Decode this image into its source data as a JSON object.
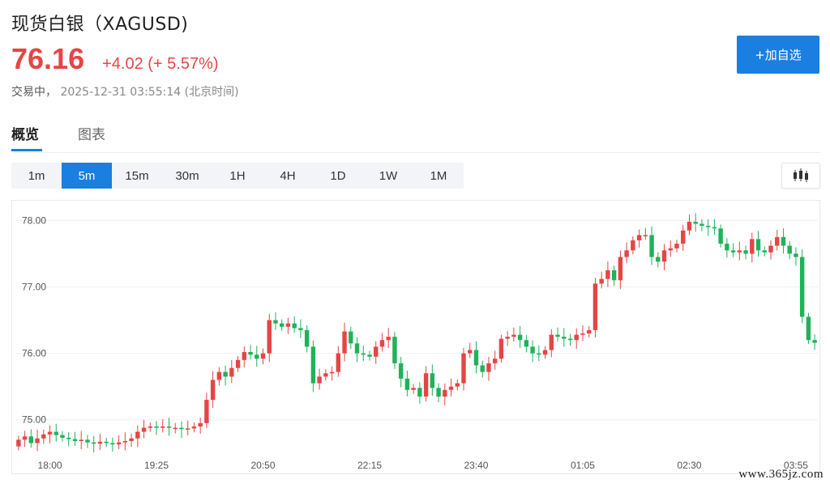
{
  "header": {
    "title": "现货白银（XAGUSD)",
    "price": "76.16",
    "change": "+4.02 (+ 5.57%)",
    "status_label": "交易中，",
    "timestamp": "2025-12-31 03:55:14",
    "timezone": "(北京时间)",
    "add_button": "+加自选"
  },
  "tabs": [
    {
      "label": "概览",
      "active": true
    },
    {
      "label": "图表",
      "active": false
    }
  ],
  "periods": [
    {
      "label": "1m",
      "active": false
    },
    {
      "label": "5m",
      "active": true
    },
    {
      "label": "15m",
      "active": false
    },
    {
      "label": "30m",
      "active": false
    },
    {
      "label": "1H",
      "active": false
    },
    {
      "label": "4H",
      "active": false
    },
    {
      "label": "1D",
      "active": false
    },
    {
      "label": "1W",
      "active": false
    },
    {
      "label": "1M",
      "active": false
    }
  ],
  "chart_type_icon": "candlestick-icon",
  "watermark": "www.365jz.com",
  "colors": {
    "up": "#e64545",
    "down": "#1fb25a",
    "accent": "#1a7fe0",
    "grid": "#eef0f3"
  },
  "chart_data": {
    "type": "candlestick",
    "ylim": [
      74.4,
      78.2
    ],
    "yticks": [
      "75.00",
      "76.00",
      "77.00",
      "78.00"
    ],
    "xtick_labels": [
      {
        "label": "18:00",
        "index": 5
      },
      {
        "label": "19:25",
        "index": 22
      },
      {
        "label": "20:50",
        "index": 39
      },
      {
        "label": "22:15",
        "index": 56
      },
      {
        "label": "23:40",
        "index": 73
      },
      {
        "label": "01:05",
        "index": 90
      },
      {
        "label": "02:30",
        "index": 107
      },
      {
        "label": "03:55",
        "index": 124
      }
    ],
    "close": [
      74.7,
      74.75,
      74.65,
      74.72,
      74.78,
      74.82,
      74.77,
      74.73,
      74.71,
      74.68,
      74.7,
      74.66,
      74.64,
      74.67,
      74.65,
      74.63,
      74.66,
      74.68,
      74.72,
      74.82,
      74.88,
      74.9,
      74.88,
      74.9,
      74.88,
      74.88,
      74.86,
      74.87,
      74.9,
      74.95,
      75.3,
      75.6,
      75.72,
      75.65,
      75.78,
      75.9,
      76.02,
      75.98,
      75.92,
      76.0,
      76.5,
      76.45,
      76.4,
      76.45,
      76.38,
      76.35,
      76.1,
      75.55,
      75.65,
      75.7,
      75.72,
      76.0,
      76.33,
      76.15,
      76.0,
      75.98,
      75.95,
      76.1,
      76.2,
      76.25,
      75.85,
      75.62,
      75.45,
      75.48,
      75.35,
      75.7,
      75.48,
      75.35,
      75.45,
      75.5,
      75.55,
      76.0,
      76.05,
      75.82,
      75.72,
      75.85,
      75.92,
      76.22,
      76.25,
      76.28,
      76.2,
      76.1,
      76.0,
      75.98,
      76.05,
      76.28,
      76.25,
      76.22,
      76.2,
      76.28,
      76.3,
      76.35,
      77.05,
      77.12,
      77.25,
      77.1,
      77.45,
      77.55,
      77.7,
      77.78,
      77.78,
      77.45,
      77.38,
      77.55,
      77.58,
      77.65,
      77.85,
      77.98,
      77.95,
      77.92,
      77.9,
      77.88,
      77.65,
      77.55,
      77.52,
      77.55,
      77.5,
      77.72,
      77.55,
      77.52,
      77.62,
      77.75,
      77.62,
      77.5,
      77.45,
      76.55,
      76.2,
      76.16
    ],
    "open": [
      74.6,
      74.7,
      74.75,
      74.65,
      74.72,
      74.78,
      74.82,
      74.77,
      74.73,
      74.71,
      74.68,
      74.7,
      74.66,
      74.64,
      74.67,
      74.65,
      74.63,
      74.66,
      74.68,
      74.72,
      74.82,
      74.88,
      74.9,
      74.88,
      74.9,
      74.88,
      74.88,
      74.86,
      74.87,
      74.9,
      74.95,
      75.3,
      75.6,
      75.72,
      75.65,
      75.78,
      75.9,
      76.02,
      75.98,
      75.92,
      76.0,
      76.5,
      76.45,
      76.4,
      76.45,
      76.38,
      76.35,
      76.1,
      75.55,
      75.65,
      75.7,
      75.72,
      76.0,
      76.33,
      76.15,
      76.0,
      75.98,
      75.95,
      76.1,
      76.2,
      76.25,
      75.85,
      75.62,
      75.45,
      75.48,
      75.35,
      75.7,
      75.48,
      75.35,
      75.45,
      75.5,
      75.55,
      76.0,
      76.05,
      75.82,
      75.72,
      75.85,
      75.92,
      76.22,
      76.25,
      76.28,
      76.2,
      76.1,
      76.0,
      75.98,
      76.05,
      76.28,
      76.25,
      76.22,
      76.2,
      76.28,
      76.3,
      76.35,
      77.05,
      77.12,
      77.25,
      77.1,
      77.45,
      77.55,
      77.7,
      77.78,
      77.78,
      77.45,
      77.38,
      77.55,
      77.58,
      77.65,
      77.85,
      77.98,
      77.95,
      77.92,
      77.9,
      77.88,
      77.65,
      77.55,
      77.52,
      77.55,
      77.5,
      77.72,
      77.55,
      77.52,
      77.62,
      77.75,
      77.62,
      77.5,
      77.45,
      76.55,
      76.2
    ]
  }
}
